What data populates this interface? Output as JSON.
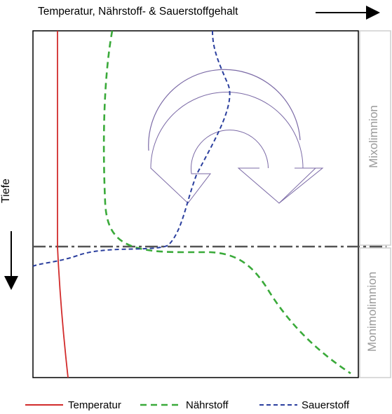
{
  "x_axis_title": "Temperatur, Nährstoff- & Sauerstoffgehalt",
  "y_axis_title": "Tiefe",
  "zones": {
    "upper": "Mixolimnion",
    "lower": "Monimolimnion"
  },
  "legend": {
    "temperature": "Temperatur",
    "nutrient": "Nährstoff",
    "oxygen": "Sauerstoff"
  },
  "colors": {
    "temperature": "#d22b2b",
    "nutrient": "#3aaa3a",
    "oxygen": "#2b3f9e",
    "boundary": "#555555",
    "circulation_arrow": "#7b6aa6",
    "zone_text": "#9a9a9a"
  },
  "icons": {
    "circulation": "circular-arrows-icon",
    "x_direction": "arrow-right-icon",
    "y_direction": "arrow-down-icon"
  }
}
